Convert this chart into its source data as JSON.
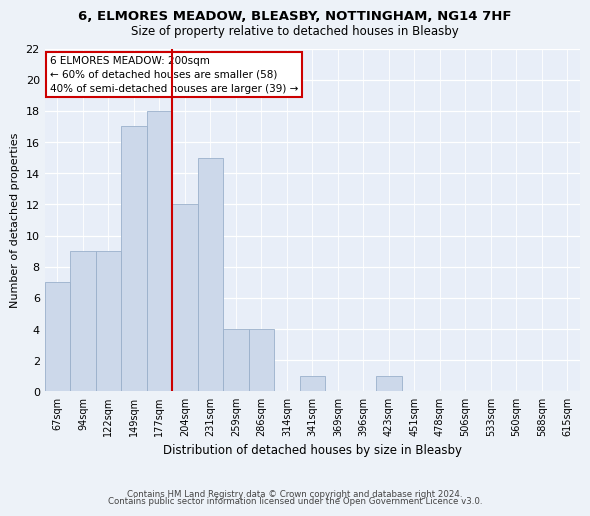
{
  "title1": "6, ELMORES MEADOW, BLEASBY, NOTTINGHAM, NG14 7HF",
  "title2": "Size of property relative to detached houses in Bleasby",
  "xlabel": "Distribution of detached houses by size in Bleasby",
  "ylabel": "Number of detached properties",
  "bar_labels": [
    "67sqm",
    "94sqm",
    "122sqm",
    "149sqm",
    "177sqm",
    "204sqm",
    "231sqm",
    "259sqm",
    "286sqm",
    "314sqm",
    "341sqm",
    "369sqm",
    "396sqm",
    "423sqm",
    "451sqm",
    "478sqm",
    "506sqm",
    "533sqm",
    "560sqm",
    "588sqm",
    "615sqm"
  ],
  "bar_values": [
    7,
    9,
    9,
    17,
    18,
    12,
    15,
    4,
    4,
    0,
    1,
    0,
    0,
    1,
    0,
    0,
    0,
    0,
    0,
    0,
    0
  ],
  "bar_color": "#ccd8ea",
  "bar_edge_color": "#9ab0cb",
  "vline_index": 4,
  "vline_color": "#cc0000",
  "annotation_box_color": "#cc0000",
  "annotation_lines": [
    "6 ELMORES MEADOW: 200sqm",
    "← 60% of detached houses are smaller (58)",
    "40% of semi-detached houses are larger (39) →"
  ],
  "ylim": [
    0,
    22
  ],
  "yticks": [
    0,
    2,
    4,
    6,
    8,
    10,
    12,
    14,
    16,
    18,
    20,
    22
  ],
  "fig_bg_color": "#edf2f8",
  "ax_bg_color": "#e8eef8",
  "footer1": "Contains HM Land Registry data © Crown copyright and database right 2024.",
  "footer2": "Contains public sector information licensed under the Open Government Licence v3.0."
}
